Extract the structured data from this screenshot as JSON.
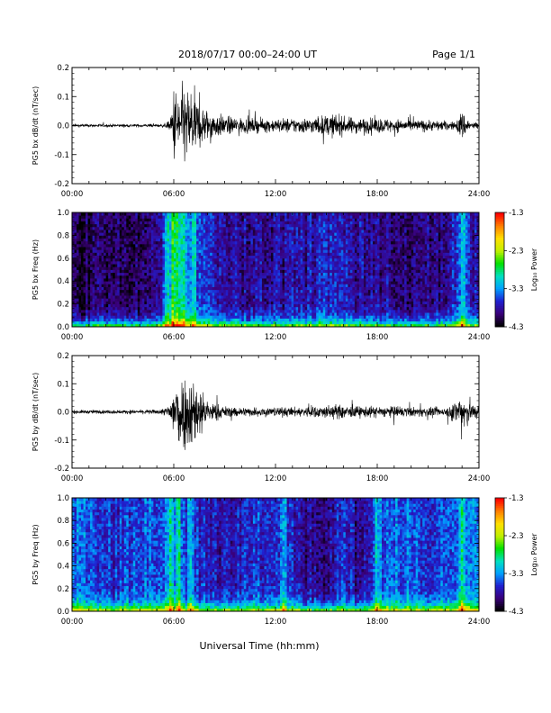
{
  "header": {
    "title": "2018/07/17  00:00–24:00 UT",
    "page": "Page 1/1"
  },
  "xlabel": "Universal Time (hh:mm)",
  "colorbar": {
    "label": "Log₁₀ Power",
    "ticks": [
      "-1.3",
      "-2.3",
      "-3.3",
      "-4.3"
    ],
    "range": [
      -4.3,
      -1.3
    ],
    "colors": [
      "#000000",
      "#3a007a",
      "#2020d0",
      "#00a0ff",
      "#00e0c0",
      "#00e000",
      "#c0f000",
      "#ffe000",
      "#ff8000",
      "#ff0000"
    ]
  },
  "chart_data": [
    {
      "type": "line",
      "ylabel": "PG5 bx dB/dt (nT/sec)",
      "xlim": [
        0,
        24
      ],
      "ylim": [
        -0.2,
        0.2
      ],
      "xtick_labels": [
        "00:00",
        "06:00",
        "12:00",
        "18:00",
        "24:00"
      ],
      "ytick_labels": [
        "-0.2",
        "-0.1",
        "0.0",
        "0.1",
        "0.2"
      ],
      "series": [
        {
          "x": [
            0,
            1,
            2,
            3,
            4,
            5,
            5.5,
            5.8,
            6.0,
            6.3,
            6.6,
            7.0,
            7.5,
            8.0,
            9.0,
            10.0,
            11.0,
            12.0,
            13.0,
            14.0,
            15.0,
            15.5,
            16.0,
            17.0,
            18.0,
            19.0,
            20.0,
            21.0,
            22.0,
            22.6,
            23.0,
            23.5,
            24.0
          ],
          "amplitude": [
            0.008,
            0.008,
            0.008,
            0.008,
            0.008,
            0.008,
            0.01,
            0.03,
            0.2,
            0.2,
            0.2,
            0.2,
            0.12,
            0.08,
            0.05,
            0.04,
            0.035,
            0.035,
            0.04,
            0.04,
            0.055,
            0.06,
            0.045,
            0.04,
            0.04,
            0.035,
            0.03,
            0.03,
            0.025,
            0.02,
            0.08,
            0.02,
            0.02
          ]
        }
      ]
    },
    {
      "type": "heatmap",
      "ylabel": "PG5 bx Freq (Hz)",
      "xlim": [
        0,
        24
      ],
      "ylim": [
        0,
        1.0
      ],
      "xtick_labels": [
        "00:00",
        "06:00",
        "12:00",
        "18:00",
        "24:00"
      ],
      "ytick_labels": [
        "0.0",
        "0.2",
        "0.4",
        "0.6",
        "0.8",
        "1.0"
      ],
      "zlim": [
        -4.3,
        -1.3
      ],
      "base_level": [
        -4.1,
        -4.1,
        -4.0,
        -4.0,
        -4.0,
        -4.0,
        -3.1,
        -3.5,
        -3.7,
        -3.8,
        -3.85,
        -3.85,
        -3.85,
        -3.85,
        -3.8,
        -3.7,
        -3.8,
        -3.85,
        -3.9,
        -3.9,
        -3.95,
        -3.95,
        -3.95,
        -3.5,
        -3.9
      ],
      "burst_times": [
        5.6,
        6.0,
        6.2,
        6.6,
        7.2,
        23.0
      ]
    },
    {
      "type": "line",
      "ylabel": "PG5 by dB/dt (nT/sec)",
      "xlim": [
        0,
        24
      ],
      "ylim": [
        -0.2,
        0.2
      ],
      "xtick_labels": [
        "00:00",
        "06:00",
        "12:00",
        "18:00",
        "24:00"
      ],
      "ytick_labels": [
        "-0.2",
        "-0.1",
        "0.0",
        "0.1",
        "0.2"
      ],
      "series": [
        {
          "x": [
            0,
            1,
            2,
            3,
            4,
            5,
            5.5,
            5.8,
            6.0,
            6.3,
            6.6,
            7.0,
            7.5,
            8.0,
            9.0,
            10.0,
            11.0,
            12.0,
            13.0,
            14.0,
            15.0,
            15.5,
            16.0,
            17.0,
            18.0,
            19.0,
            20.0,
            21.0,
            22.0,
            22.6,
            23.0,
            23.5,
            24.0
          ],
          "amplitude": [
            0.01,
            0.01,
            0.01,
            0.01,
            0.01,
            0.012,
            0.02,
            0.06,
            0.16,
            0.2,
            0.2,
            0.2,
            0.15,
            0.06,
            0.03,
            0.025,
            0.025,
            0.025,
            0.025,
            0.03,
            0.035,
            0.04,
            0.035,
            0.03,
            0.03,
            0.03,
            0.025,
            0.025,
            0.02,
            0.06,
            0.12,
            0.06,
            0.03
          ]
        }
      ]
    },
    {
      "type": "heatmap",
      "ylabel": "PG5 by Freq (Hz)",
      "xlim": [
        0,
        24
      ],
      "ylim": [
        0,
        1.0
      ],
      "xtick_labels": [
        "00:00",
        "06:00",
        "12:00",
        "18:00",
        "24:00"
      ],
      "ytick_labels": [
        "0.0",
        "0.2",
        "0.4",
        "0.6",
        "0.8",
        "1.0"
      ],
      "zlim": [
        -4.3,
        -1.3
      ],
      "base_level": [
        -3.4,
        -3.5,
        -3.7,
        -3.6,
        -3.5,
        -3.45,
        -3.4,
        -3.6,
        -3.7,
        -3.8,
        -3.7,
        -3.6,
        -3.7,
        -3.7,
        -3.9,
        -3.9,
        -3.6,
        -3.95,
        -3.5,
        -3.4,
        -3.5,
        -3.6,
        -3.5,
        -3.4,
        -3.4
      ],
      "burst_times": [
        5.8,
        6.3,
        7.0,
        12.5,
        18.0,
        23.0
      ]
    }
  ]
}
